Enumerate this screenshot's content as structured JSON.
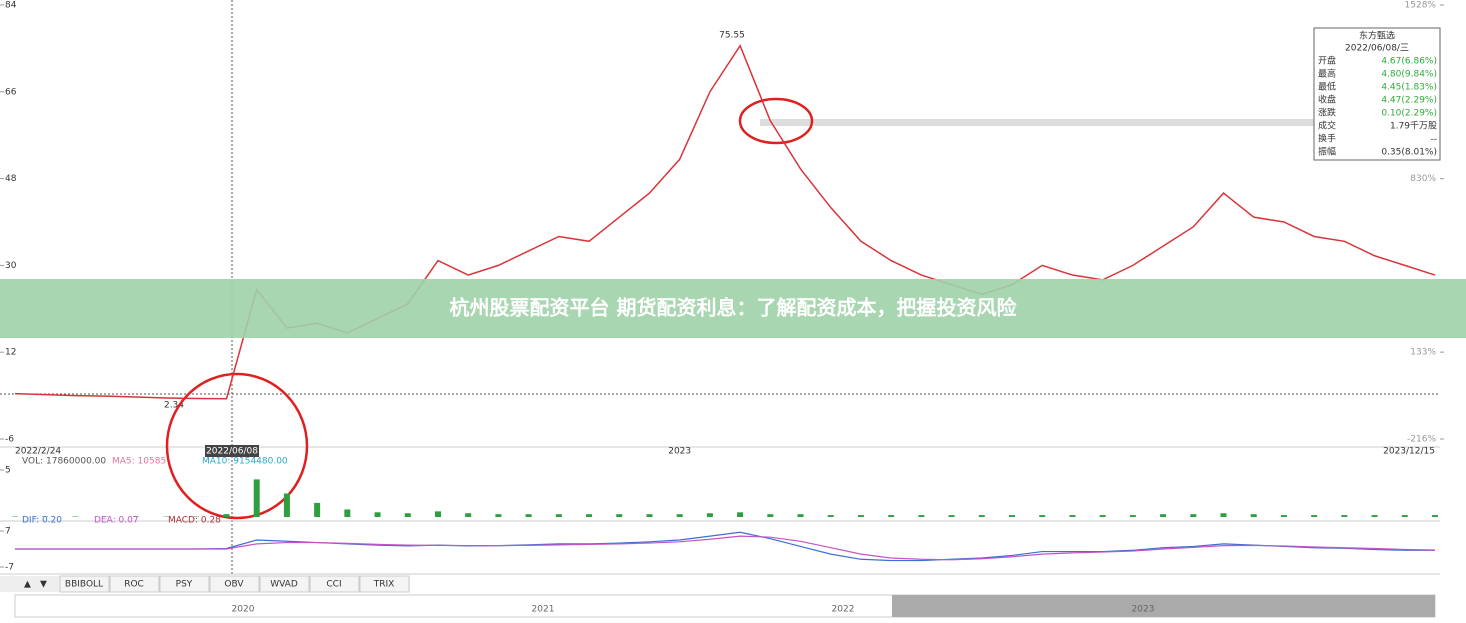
{
  "chart_data": [
    {
      "type": "line",
      "color": "#d9343a",
      "categories": [
        "2022/2/24",
        null,
        null,
        null,
        null,
        null,
        null,
        null,
        null,
        null,
        null,
        null,
        null,
        null,
        null,
        null,
        null,
        null,
        null,
        null,
        null,
        null,
        "2023",
        null,
        null,
        null,
        null,
        null,
        null,
        null,
        null,
        null,
        null,
        null,
        null,
        null,
        null,
        null,
        null,
        null,
        null,
        null,
        null,
        null,
        null,
        null,
        null,
        "2023/12/15"
      ],
      "values": [
        3.4,
        3.2,
        3.0,
        2.9,
        2.7,
        2.5,
        2.4,
        2.34,
        25,
        17,
        18,
        16,
        19,
        22,
        31,
        28,
        30,
        33,
        36,
        35,
        40,
        45,
        52,
        66,
        75.55,
        60,
        50,
        42,
        35,
        31,
        28,
        26,
        24,
        26,
        30,
        28,
        27,
        30,
        34,
        38,
        45,
        40,
        39,
        36,
        35,
        32,
        30,
        28
      ],
      "ylim": [
        -6,
        84
      ],
      "yticks": [
        -6,
        12,
        30,
        48,
        66,
        84
      ],
      "y2lim": [
        -216,
        1528
      ],
      "y2ticks": [
        {
          "value": -216,
          "label": "-216%"
        },
        {
          "value": 133,
          "label": "133%"
        },
        {
          "value": 830,
          "label": "830%"
        },
        {
          "value": 1528,
          "label": "1528%"
        }
      ],
      "annotations": [
        "75.55",
        "2.34"
      ],
      "cursor_date": "2022/06/08"
    },
    {
      "type": "bar",
      "color": "#2e9e3e",
      "indicators": [
        "VOL: 17860000.00",
        "MA5: 10585",
        "MA10: 9154480.00"
      ],
      "values": [
        0.05,
        0.05,
        0.05,
        0.04,
        0.04,
        0.04,
        0.05,
        0.3,
        4,
        2.5,
        1.5,
        0.8,
        0.5,
        0.4,
        0.6,
        0.4,
        0.3,
        0.3,
        0.3,
        0.3,
        0.3,
        0.3,
        0.3,
        0.4,
        0.5,
        0.3,
        0.3,
        0.2,
        0.2,
        0.2,
        0.2,
        0.2,
        0.2,
        0.2,
        0.2,
        0.2,
        0.2,
        0.2,
        0.3,
        0.3,
        0.4,
        0.3,
        0.2,
        0.2,
        0.2,
        0.2,
        0.2,
        0.2
      ],
      "ylim": [
        0,
        5
      ],
      "yticks": [
        5
      ]
    },
    {
      "type": "line",
      "series": [
        {
          "name": "DIF: 0.20",
          "color": "#3b6fd0",
          "values": [
            0,
            0,
            0,
            0,
            0,
            0,
            0,
            0.2,
            3.5,
            3,
            2.5,
            2,
            1.5,
            1.2,
            1.5,
            1.2,
            1.3,
            1.6,
            2,
            2,
            2.3,
            2.8,
            3.5,
            5,
            6.5,
            4,
            1,
            -2,
            -4,
            -4.5,
            -4.5,
            -4,
            -3.5,
            -2.5,
            -1,
            -1,
            -1,
            -0.5,
            0.5,
            1,
            2,
            1.5,
            1,
            0.5,
            0.3,
            -0.2,
            -0.5,
            -0.5
          ]
        },
        {
          "name": "DEA: 0.07",
          "color": "#c354c8",
          "values": [
            0,
            0,
            0,
            0,
            0,
            0,
            0,
            0,
            2,
            2.5,
            2.5,
            2.2,
            1.8,
            1.5,
            1.4,
            1.3,
            1.3,
            1.4,
            1.6,
            1.8,
            2,
            2.3,
            2.8,
            3.8,
            5,
            4.6,
            3,
            0.5,
            -2,
            -3.5,
            -4,
            -4.2,
            -3.8,
            -3,
            -2,
            -1.5,
            -1.2,
            -0.8,
            0,
            0.6,
            1.3,
            1.4,
            1.2,
            0.8,
            0.5,
            0.2,
            -0.2,
            -0.4
          ]
        }
      ],
      "indicator": "MACD: 0.28",
      "ylim": [
        -7,
        7
      ],
      "yticks": [
        -7,
        7
      ]
    }
  ],
  "info_panel": {
    "name": "东方甄选",
    "date": "2022/06/08/三",
    "rows": [
      [
        "开盘",
        "4.67(6.86%)"
      ],
      [
        "最高",
        "4.80(9.84%)"
      ],
      [
        "最低",
        "4.45(1.83%)"
      ],
      [
        "收盘",
        "4.47(2.29%)"
      ],
      [
        "涨跌",
        "0.10(2.29%)"
      ],
      [
        "成交",
        "1.79千万股"
      ],
      [
        "换手",
        "--"
      ],
      [
        "振幅",
        "0.35(8.01%)"
      ]
    ]
  },
  "tabs": [
    "BBIBOLL",
    "ROC",
    "PSY",
    "OBV",
    "WVAD",
    "CCI",
    "TRIX"
  ],
  "navigator_years": [
    "2020",
    "2021",
    "2022",
    "2023"
  ],
  "banner": "杭州股票配资平台 期货配资利息：了解配资成本，把握投资风险"
}
